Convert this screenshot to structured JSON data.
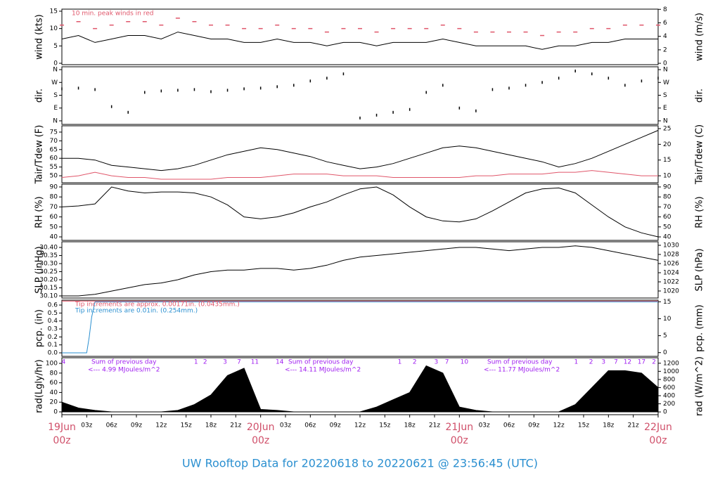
{
  "chart_data": [
    {
      "type": "line",
      "ylabel": "wind (kts)",
      "y2label": "wind (m/s)",
      "annotation": "10 min. peak winds in red",
      "xlim": [
        0,
        72
      ],
      "ylim": [
        -0.4,
        15.6
      ],
      "yticks": [
        0,
        5,
        10,
        15
      ],
      "y2lim": [
        -0.2,
        8.03
      ],
      "y2ticks": [
        0,
        2,
        4,
        6,
        8
      ],
      "x": [
        0,
        2,
        4,
        6,
        8,
        10,
        12,
        14,
        16,
        18,
        20,
        22,
        24,
        26,
        28,
        30,
        32,
        34,
        36,
        38,
        40,
        42,
        44,
        46,
        48,
        50,
        52,
        54,
        56,
        58,
        60,
        62,
        64,
        66,
        68,
        70,
        72
      ],
      "series": [
        {
          "name": "mean wind",
          "color": "#000000",
          "values": [
            7,
            8,
            6,
            7,
            8,
            8,
            7,
            9,
            8,
            7,
            7,
            6,
            6,
            7,
            6,
            6,
            5,
            6,
            6,
            5,
            6,
            6,
            6,
            7,
            6,
            5,
            5,
            5,
            5,
            4,
            5,
            5,
            6,
            6,
            7,
            7,
            7
          ]
        },
        {
          "name": "peak wind",
          "type": "scatter",
          "color": "#e0566a",
          "values": [
            11,
            12,
            10,
            11,
            12,
            12,
            11,
            13,
            12,
            11,
            11,
            10,
            10,
            11,
            10,
            10,
            9,
            10,
            10,
            9,
            10,
            10,
            10,
            11,
            10,
            9,
            9,
            9,
            9,
            8,
            9,
            9,
            10,
            10,
            11,
            11,
            11
          ]
        }
      ]
    },
    {
      "type": "scatter",
      "ylabel": "dir.",
      "y2label": "dir.",
      "xlim": [
        0,
        72
      ],
      "ylim": [
        -25,
        380
      ],
      "yticks": [
        {
          "value": 0,
          "label": "N"
        },
        {
          "value": 90,
          "label": "E"
        },
        {
          "value": 180,
          "label": "S"
        },
        {
          "value": 270,
          "label": "W"
        },
        {
          "value": 360,
          "label": "N"
        }
      ],
      "x": [
        0,
        2,
        4,
        6,
        8,
        10,
        12,
        14,
        16,
        18,
        20,
        22,
        24,
        26,
        28,
        30,
        32,
        34,
        36,
        38,
        40,
        42,
        44,
        46,
        48,
        50,
        52,
        54,
        56,
        58,
        60,
        62,
        64,
        66,
        68,
        70,
        72
      ],
      "series": [
        {
          "name": "direction",
          "color": "#000000",
          "values": [
            225,
            230,
            220,
            100,
            60,
            200,
            210,
            215,
            220,
            205,
            215,
            225,
            230,
            240,
            250,
            280,
            300,
            330,
            20,
            40,
            60,
            80,
            200,
            250,
            90,
            70,
            220,
            230,
            250,
            270,
            300,
            350,
            330,
            300,
            250,
            280,
            300
          ]
        }
      ]
    },
    {
      "type": "line",
      "ylabel": "Tair/Tdew (F)",
      "y2label": "Tair/Tdew (C)",
      "xlim": [
        0,
        72
      ],
      "ylim": [
        46,
        78.6
      ],
      "yticks": [
        50,
        55,
        60,
        65,
        70,
        75
      ],
      "y2lim": [
        7.78,
        25.89
      ],
      "y2ticks": [
        10,
        15,
        20,
        25
      ],
      "x": [
        0,
        2,
        4,
        6,
        8,
        10,
        12,
        14,
        16,
        18,
        20,
        22,
        24,
        26,
        28,
        30,
        32,
        34,
        36,
        38,
        40,
        42,
        44,
        46,
        48,
        50,
        52,
        54,
        56,
        58,
        60,
        62,
        64,
        66,
        68,
        70,
        72
      ],
      "series": [
        {
          "name": "Tair",
          "color": "#000000",
          "values": [
            60,
            60,
            59,
            56,
            55,
            54,
            53,
            54,
            56,
            59,
            62,
            64,
            66,
            65,
            63,
            61,
            58,
            56,
            54,
            55,
            57,
            60,
            63,
            66,
            67,
            66,
            64,
            62,
            60,
            58,
            55,
            57,
            60,
            64,
            68,
            72,
            76
          ]
        },
        {
          "name": "Tdew",
          "color": "#e0566a",
          "values": [
            49,
            50,
            52,
            50,
            49,
            49,
            48,
            48,
            48,
            48,
            49,
            49,
            49,
            50,
            51,
            51,
            51,
            50,
            50,
            50,
            49,
            49,
            49,
            49,
            49,
            50,
            50,
            51,
            51,
            51,
            52,
            52,
            53,
            52,
            51,
            50,
            50
          ]
        }
      ]
    },
    {
      "type": "line",
      "ylabel": "RH (%)",
      "y2label": "RH (%)",
      "xlim": [
        0,
        72
      ],
      "ylim": [
        36.5,
        92.8
      ],
      "yticks": [
        40,
        50,
        60,
        70,
        80,
        90
      ],
      "y2lim": [
        36.5,
        92.8
      ],
      "y2ticks": [
        40,
        50,
        60,
        70,
        80,
        90
      ],
      "x": [
        0,
        2,
        4,
        6,
        8,
        10,
        12,
        14,
        16,
        18,
        20,
        22,
        24,
        26,
        28,
        30,
        32,
        34,
        36,
        38,
        40,
        42,
        44,
        46,
        48,
        50,
        52,
        54,
        56,
        58,
        60,
        62,
        64,
        66,
        68,
        70,
        72
      ],
      "series": [
        {
          "name": "RH",
          "color": "#000000",
          "values": [
            70,
            71,
            73,
            90,
            86,
            84,
            85,
            85,
            84,
            80,
            72,
            60,
            58,
            60,
            64,
            70,
            75,
            82,
            88,
            90,
            82,
            70,
            60,
            56,
            55,
            58,
            66,
            75,
            84,
            88,
            89,
            84,
            72,
            60,
            50,
            44,
            40
          ]
        }
      ]
    },
    {
      "type": "line",
      "ylabel": "SLP (inHg)",
      "y2label": "SLP (hPa)",
      "xlim": [
        0,
        72
      ],
      "ylim": [
        30.087,
        30.435
      ],
      "yticks": [
        {
          "value": 30.1,
          "label": "30.10"
        },
        30.15,
        {
          "value": 30.2,
          "label": "30.20"
        },
        30.25,
        {
          "value": 30.3,
          "label": "30.30"
        },
        30.35,
        {
          "value": 30.4,
          "label": "30.40"
        }
      ],
      "y2lim": [
        1018.46,
        1030.77
      ],
      "y2ticks": [
        1020,
        1022,
        1024,
        1026,
        1028,
        1030
      ],
      "x": [
        0,
        2,
        4,
        6,
        8,
        10,
        12,
        14,
        16,
        18,
        20,
        22,
        24,
        26,
        28,
        30,
        32,
        34,
        36,
        38,
        40,
        42,
        44,
        46,
        48,
        50,
        52,
        54,
        56,
        58,
        60,
        62,
        64,
        66,
        68,
        70,
        72
      ],
      "series": [
        {
          "name": "SLP",
          "color": "#000000",
          "values": [
            30.1,
            30.1,
            30.11,
            30.13,
            30.15,
            30.17,
            30.18,
            30.2,
            30.23,
            30.25,
            30.26,
            30.26,
            30.27,
            30.27,
            30.26,
            30.27,
            30.29,
            30.32,
            30.34,
            30.35,
            30.36,
            30.37,
            30.38,
            30.39,
            30.4,
            30.4,
            30.39,
            30.38,
            30.39,
            30.4,
            30.4,
            30.41,
            30.4,
            30.38,
            30.36,
            30.34,
            30.32
          ]
        }
      ]
    },
    {
      "type": "line",
      "ylabel": "pcp. (in)",
      "y2label": "pcp. (mm)",
      "notes": [
        "Tip increments are approx. 0.00171in. (0.0435mm.)",
        "Tip increments are 0.01in. (0.254mm.)"
      ],
      "xlim": [
        0,
        72
      ],
      "ylim": [
        -0.044,
        0.662
      ],
      "yticks": [
        {
          "value": 0,
          "label": "0.0"
        },
        0.1,
        0.2,
        0.3,
        0.4,
        0.5,
        0.6
      ],
      "y2lim": [
        -1.1,
        15.5
      ],
      "y2ticks": [
        0,
        5,
        10,
        15
      ],
      "series": [
        {
          "name": "pcp approx",
          "color": "#e0566a",
          "x": [
            0,
            72
          ],
          "values": [
            0.65,
            0.65
          ]
        },
        {
          "name": "pcp",
          "color": "#2a8fd0",
          "x": [
            0,
            3,
            3.3,
            3.6,
            4,
            72
          ],
          "values": [
            0,
            0,
            0.2,
            0.45,
            0.64,
            0.64
          ]
        }
      ]
    },
    {
      "type": "area",
      "ylabel": "rad(Lgly/hr)",
      "y2label": "rad (W/m^2)",
      "sums": [
        "Sum of previous day",
        "Sum of previous day",
        "Sum of previous day"
      ],
      "totals": [
        "<--- 4.99 MJoules/m^2",
        "<--- 14.11 MJoules/m^2",
        "<--- 11.77 MJoules/m^2"
      ],
      "hour_marks": [
        {
          "value": 0.2,
          "label": "4"
        },
        {
          "value": 16.2,
          "label": "1"
        },
        {
          "value": 17.3,
          "label": "2"
        },
        {
          "value": 19.7,
          "label": "3"
        },
        {
          "value": 21.4,
          "label": "7"
        },
        {
          "value": 23.3,
          "label": "11"
        },
        {
          "value": 26.3,
          "label": "14"
        },
        {
          "value": 40.8,
          "label": "1"
        },
        {
          "value": 42.6,
          "label": "2"
        },
        {
          "value": 45.2,
          "label": "3"
        },
        {
          "value": 46.5,
          "label": "7"
        },
        {
          "value": 48.6,
          "label": "10"
        },
        {
          "value": 62.1,
          "label": "1"
        },
        {
          "value": 63.9,
          "label": "2"
        },
        {
          "value": 65.4,
          "label": "3"
        },
        {
          "value": 66.9,
          "label": "7"
        },
        {
          "value": 68.3,
          "label": "12"
        },
        {
          "value": 70,
          "label": "17"
        },
        {
          "value": 71.5,
          "label": "2"
        }
      ],
      "xlim": [
        0,
        72
      ],
      "ylim": [
        -5.8,
        111.6
      ],
      "yticks": [
        0,
        20,
        40,
        60,
        80,
        100
      ],
      "y2lim": [
        -68,
        1335
      ],
      "y2ticks": [
        0,
        200,
        400,
        600,
        800,
        1000,
        1200
      ],
      "xticks": [
        {
          "value": 0,
          "label": "00z"
        },
        {
          "value": 3,
          "label": "03z"
        },
        {
          "value": 6,
          "label": "06z"
        },
        {
          "value": 9,
          "label": "09z"
        },
        {
          "value": 12,
          "label": "12z"
        },
        {
          "value": 15,
          "label": "15z"
        },
        {
          "value": 18,
          "label": "18z"
        },
        {
          "value": 21,
          "label": "21z"
        },
        {
          "value": 24,
          "label": "00z"
        },
        {
          "value": 27,
          "label": "03z"
        },
        {
          "value": 30,
          "label": "06z"
        },
        {
          "value": 33,
          "label": "09z"
        },
        {
          "value": 36,
          "label": "12z"
        },
        {
          "value": 39,
          "label": "15z"
        },
        {
          "value": 42,
          "label": "18z"
        },
        {
          "value": 45,
          "label": "21z"
        },
        {
          "value": 48,
          "label": "00z"
        },
        {
          "value": 51,
          "label": "03z"
        },
        {
          "value": 54,
          "label": "06z"
        },
        {
          "value": 57,
          "label": "09z"
        },
        {
          "value": 60,
          "label": "12z"
        },
        {
          "value": 63,
          "label": "15z"
        },
        {
          "value": 66,
          "label": "18z"
        },
        {
          "value": 69,
          "label": "21z"
        },
        {
          "value": 72,
          "label": "00z"
        }
      ],
      "day_labels": [
        {
          "value": 0,
          "label": "19Jun"
        },
        {
          "value": 24,
          "label": "20Jun"
        },
        {
          "value": 48,
          "label": "21Jun"
        },
        {
          "value": 72,
          "label": "22Jun"
        }
      ],
      "title": "UW Rooftop Data for 20220618  to  20220621 @ 23:56:45  (UTC)",
      "x": [
        0,
        2,
        4,
        6,
        8,
        10,
        12,
        14,
        16,
        18,
        20,
        22,
        24,
        26,
        28,
        30,
        32,
        34,
        36,
        38,
        40,
        42,
        44,
        46,
        48,
        50,
        52,
        54,
        56,
        58,
        60,
        62,
        64,
        66,
        68,
        70,
        72
      ],
      "series": [
        {
          "name": "radiation",
          "color": "#000000",
          "values": [
            20,
            8,
            3,
            0,
            0,
            0,
            0,
            3,
            15,
            35,
            75,
            90,
            5,
            3,
            0,
            0,
            0,
            0,
            0,
            10,
            25,
            40,
            95,
            80,
            10,
            3,
            0,
            0,
            0,
            0,
            0,
            15,
            50,
            85,
            85,
            80,
            50
          ]
        }
      ]
    }
  ]
}
